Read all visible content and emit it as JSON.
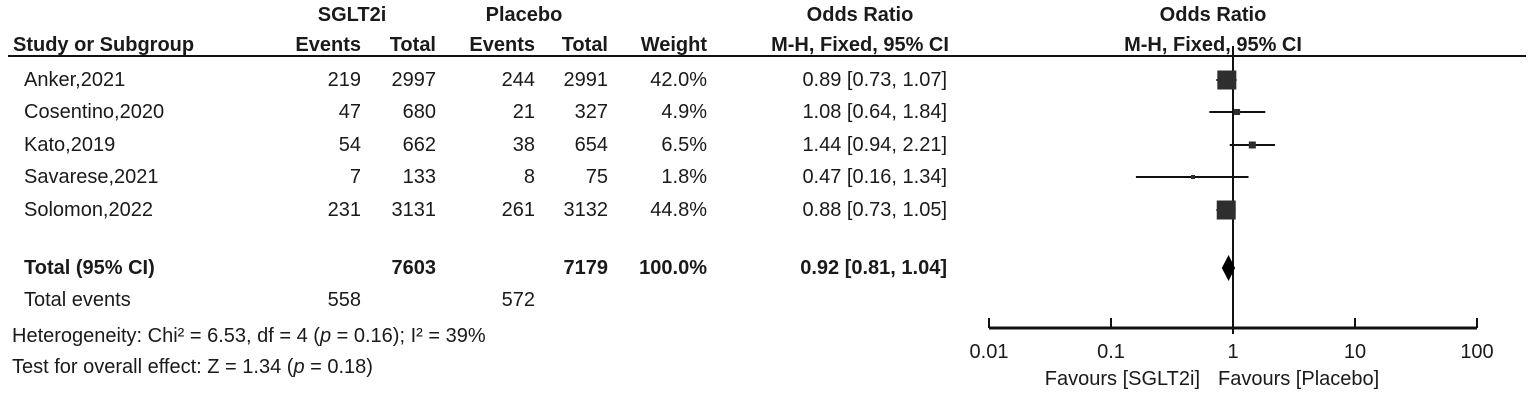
{
  "figure": {
    "group_headers": {
      "treatment": "SGLT2i",
      "control": "Placebo",
      "or_stats": "Odds Ratio",
      "or_plot": "Odds Ratio"
    },
    "column_headers": {
      "study": "Study or Subgroup",
      "events1": "Events",
      "total1": "Total",
      "events2": "Events",
      "total2": "Total",
      "weight": "Weight",
      "mh_ci_stats": "M-H, Fixed, 95% CI",
      "mh_ci_plot": "M-H, Fixed, 95% CI"
    },
    "rows": [
      {
        "study": "Anker,2021",
        "events1": "219",
        "total1": "2997",
        "events2": "244",
        "total2": "2991",
        "weight": "42.0%",
        "or_ci": "0.89 [0.73, 1.07]"
      },
      {
        "study": "Cosentino,2020",
        "events1": "47",
        "total1": "680",
        "events2": "21",
        "total2": "327",
        "weight": "4.9%",
        "or_ci": "1.08 [0.64, 1.84]"
      },
      {
        "study": "Kato,2019",
        "events1": "54",
        "total1": "662",
        "events2": "38",
        "total2": "654",
        "weight": "6.5%",
        "or_ci": "1.44 [0.94, 2.21]"
      },
      {
        "study": "Savarese,2021",
        "events1": "7",
        "total1": "133",
        "events2": "8",
        "total2": "75",
        "weight": "1.8%",
        "or_ci": "0.47 [0.16, 1.34]"
      },
      {
        "study": "Solomon,2022",
        "events1": "231",
        "total1": "3131",
        "events2": "261",
        "total2": "3132",
        "weight": "44.8%",
        "or_ci": "0.88 [0.73, 1.05]"
      }
    ],
    "totals": {
      "label": "Total (95% CI)",
      "total1": "7603",
      "total2": "7179",
      "weight": "100.0%",
      "or_ci": "0.92 [0.81, 1.04]",
      "events_label": "Total events",
      "events1": "558",
      "events2": "572"
    },
    "footnotes": {
      "heterogeneity_pre": "Heterogeneity: Chi² = 6.53, df = 4 (",
      "heterogeneity_p": "p",
      "heterogeneity_post": " = 0.16); I² = 39%",
      "overall_pre": "Test for overall effect: Z = 1.34 (",
      "overall_p": "p",
      "overall_post": " = 0.18)"
    }
  },
  "chart_data": {
    "type": "forest",
    "scale": "log10",
    "effect_measure": "Odds Ratio, M-H, Fixed, 95% CI",
    "axis_ticks": [
      0.01,
      0.1,
      1,
      10,
      100
    ],
    "axis_tick_labels": [
      "0.01",
      "0.1",
      "1",
      "10",
      "100"
    ],
    "null_line": 1,
    "favours_left": "Favours [SGLT2i]",
    "favours_right": "Favours [Placebo]",
    "studies": [
      {
        "name": "Anker,2021",
        "or": 0.89,
        "ci_low": 0.73,
        "ci_high": 1.07,
        "weight_pct": 42.0
      },
      {
        "name": "Cosentino,2020",
        "or": 1.08,
        "ci_low": 0.64,
        "ci_high": 1.84,
        "weight_pct": 4.9
      },
      {
        "name": "Kato,2019",
        "or": 1.44,
        "ci_low": 0.94,
        "ci_high": 2.21,
        "weight_pct": 6.5
      },
      {
        "name": "Savarese,2021",
        "or": 0.47,
        "ci_low": 0.16,
        "ci_high": 1.34,
        "weight_pct": 1.8
      },
      {
        "name": "Solomon,2022",
        "or": 0.88,
        "ci_low": 0.73,
        "ci_high": 1.05,
        "weight_pct": 44.8
      }
    ],
    "total": {
      "or": 0.92,
      "ci_low": 0.81,
      "ci_high": 1.04,
      "weight_pct": 100.0
    },
    "heterogeneity": {
      "chi2": 6.53,
      "df": 4,
      "p": 0.16,
      "i2_pct": 39
    },
    "overall_effect": {
      "z": 1.34,
      "p": 0.18
    },
    "colors": {
      "marker": "#2e2e2e",
      "diamond": "#000000",
      "line": "#111111",
      "text": "#1a1a1a"
    }
  }
}
